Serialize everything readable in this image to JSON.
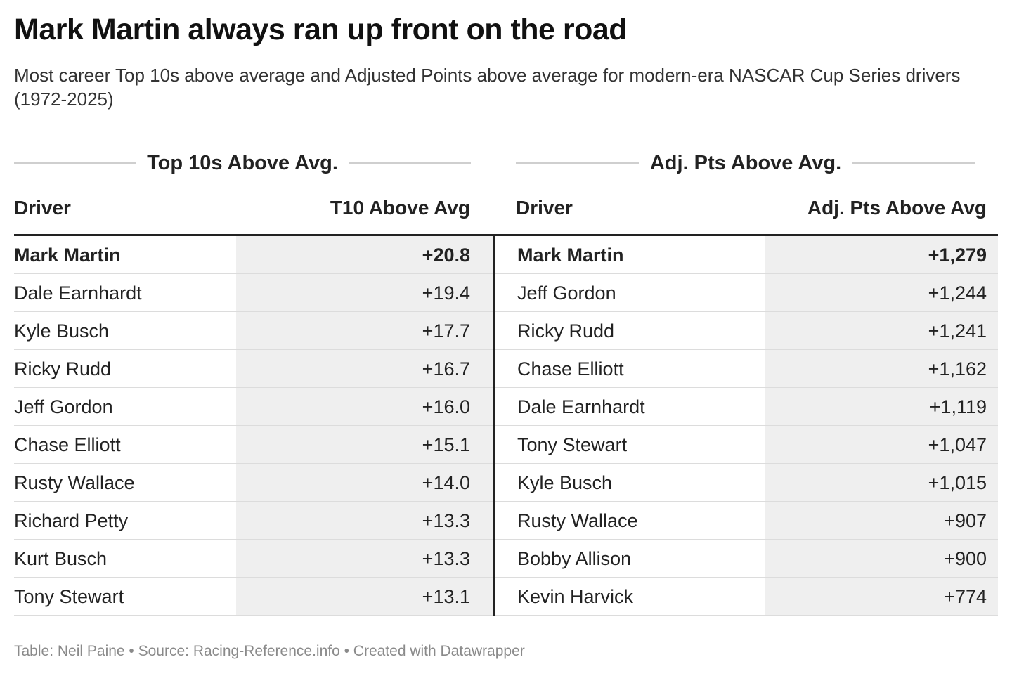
{
  "title": "Mark Martin always ran up front on the road",
  "subtitle": "Most career Top 10s above average and Adjusted Points above average for modern-era NASCAR Cup Series drivers (1972-2025)",
  "left_group": "Top 10s Above Avg.",
  "right_group": "Adj. Pts Above Avg.",
  "left_headers": {
    "driver": "Driver",
    "value": "T10 Above Avg"
  },
  "right_headers": {
    "driver": "Driver",
    "value": "Adj. Pts Above Avg"
  },
  "footer": "Table: Neil Paine • Source: Racing-Reference.info • Created with Datawrapper",
  "chart_data": [
    {
      "type": "table",
      "columns": [
        "Driver",
        "T10 Above Avg"
      ],
      "rows": [
        [
          "Mark Martin",
          "+20.8"
        ],
        [
          "Dale Earnhardt",
          "+19.4"
        ],
        [
          "Kyle Busch",
          "+17.7"
        ],
        [
          "Ricky Rudd",
          "+16.7"
        ],
        [
          "Jeff Gordon",
          "+16.0"
        ],
        [
          "Chase Elliott",
          "+15.1"
        ],
        [
          "Rusty Wallace",
          "+14.0"
        ],
        [
          "Richard Petty",
          "+13.3"
        ],
        [
          "Kurt Busch",
          "+13.3"
        ],
        [
          "Tony Stewart",
          "+13.1"
        ]
      ]
    },
    {
      "type": "table",
      "columns": [
        "Driver",
        "Adj. Pts Above Avg"
      ],
      "rows": [
        [
          "Mark Martin",
          "+1,279"
        ],
        [
          "Jeff Gordon",
          "+1,244"
        ],
        [
          "Ricky Rudd",
          "+1,241"
        ],
        [
          "Chase Elliott",
          "+1,162"
        ],
        [
          "Dale Earnhardt",
          "+1,119"
        ],
        [
          "Tony Stewart",
          "+1,047"
        ],
        [
          "Kyle Busch",
          "+1,015"
        ],
        [
          "Rusty Wallace",
          "+907"
        ],
        [
          "Bobby Allison",
          "+900"
        ],
        [
          "Kevin Harvick",
          "+774"
        ]
      ]
    }
  ]
}
